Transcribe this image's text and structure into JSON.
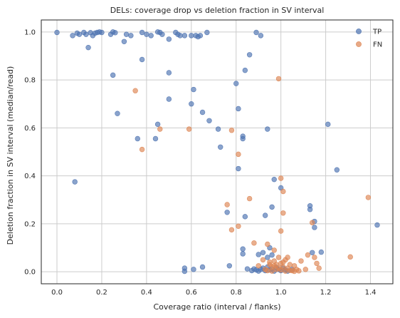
{
  "chart_data": {
    "type": "scatter",
    "title": "DELs: coverage drop vs deletion fraction in SV interval",
    "xlabel": "Coverage ratio (interval / flanks)",
    "ylabel": "Deletion fraction in SV interval (median/read)",
    "xlim": [
      -0.07,
      1.5
    ],
    "ylim": [
      -0.05,
      1.05
    ],
    "xticks": [
      "0.0",
      "0.2",
      "0.4",
      "0.6",
      "0.8",
      "1.0",
      "1.2",
      "1.4"
    ],
    "yticks": [
      "0.0",
      "0.2",
      "0.4",
      "0.6",
      "0.8",
      "1.0"
    ],
    "grid": true,
    "legend_position": "top-right",
    "series": [
      {
        "name": "TP",
        "color": "#4c72b0",
        "points": [
          [
            0.0,
            0.998
          ],
          [
            0.07,
            0.985
          ],
          [
            0.09,
            0.995
          ],
          [
            0.1,
            0.99
          ],
          [
            0.12,
            0.998
          ],
          [
            0.13,
            0.99
          ],
          [
            0.15,
            0.997
          ],
          [
            0.16,
            0.985
          ],
          [
            0.17,
            0.995
          ],
          [
            0.18,
            0.998
          ],
          [
            0.19,
            1.0
          ],
          [
            0.2,
            0.998
          ],
          [
            0.24,
            0.99
          ],
          [
            0.25,
            1.0
          ],
          [
            0.26,
            0.997
          ],
          [
            0.3,
            0.96
          ],
          [
            0.31,
            0.99
          ],
          [
            0.33,
            0.985
          ],
          [
            0.38,
            0.998
          ],
          [
            0.4,
            0.99
          ],
          [
            0.42,
            0.985
          ],
          [
            0.45,
            1.0
          ],
          [
            0.46,
            0.998
          ],
          [
            0.47,
            0.99
          ],
          [
            0.5,
            0.97
          ],
          [
            0.53,
            0.998
          ],
          [
            0.54,
            0.99
          ],
          [
            0.55,
            0.985
          ],
          [
            0.57,
            0.985
          ],
          [
            0.6,
            0.985
          ],
          [
            0.62,
            0.985
          ],
          [
            0.63,
            0.98
          ],
          [
            0.64,
            0.985
          ],
          [
            0.67,
            0.998
          ],
          [
            0.89,
            0.998
          ],
          [
            0.91,
            0.985
          ],
          [
            0.14,
            0.935
          ],
          [
            0.25,
            0.82
          ],
          [
            0.38,
            0.885
          ],
          [
            0.5,
            0.83
          ],
          [
            0.61,
            0.76
          ],
          [
            0.6,
            0.7
          ],
          [
            0.65,
            0.665
          ],
          [
            0.5,
            0.72
          ],
          [
            0.68,
            0.63
          ],
          [
            0.72,
            0.595
          ],
          [
            0.45,
            0.615
          ],
          [
            0.36,
            0.555
          ],
          [
            0.44,
            0.555
          ],
          [
            0.27,
            0.66
          ],
          [
            0.08,
            0.375
          ],
          [
            0.73,
            0.52
          ],
          [
            0.8,
            0.785
          ],
          [
            0.84,
            0.84
          ],
          [
            0.86,
            0.905
          ],
          [
            0.81,
            0.68
          ],
          [
            0.83,
            0.565
          ],
          [
            0.83,
            0.555
          ],
          [
            0.94,
            0.595
          ],
          [
            0.81,
            0.43
          ],
          [
            1.21,
            0.615
          ],
          [
            1.25,
            0.425
          ],
          [
            0.76,
            0.248
          ],
          [
            0.84,
            0.23
          ],
          [
            0.93,
            0.235
          ],
          [
            0.96,
            0.27
          ],
          [
            0.97,
            0.385
          ],
          [
            1.0,
            0.35
          ],
          [
            1.13,
            0.26
          ],
          [
            1.13,
            0.275
          ],
          [
            1.15,
            0.21
          ],
          [
            1.15,
            0.185
          ],
          [
            1.43,
            0.195
          ],
          [
            0.83,
            0.095
          ],
          [
            0.83,
            0.075
          ],
          [
            0.9,
            0.072
          ],
          [
            0.92,
            0.08
          ],
          [
            0.94,
            0.06
          ],
          [
            0.95,
            0.1
          ],
          [
            0.96,
            0.07
          ],
          [
            1.14,
            0.08
          ],
          [
            1.18,
            0.082
          ],
          [
            0.57,
            0.015
          ],
          [
            0.57,
            0.002
          ],
          [
            0.61,
            0.01
          ],
          [
            0.65,
            0.02
          ],
          [
            0.77,
            0.025
          ],
          [
            0.85,
            0.012
          ],
          [
            0.87,
            0.005
          ],
          [
            0.88,
            0.012
          ],
          [
            0.89,
            0.008
          ],
          [
            0.9,
            0.003
          ],
          [
            0.91,
            0.01
          ],
          [
            0.92,
            0.015
          ],
          [
            0.93,
            0.005
          ],
          [
            0.94,
            0.02
          ],
          [
            0.95,
            0.008
          ],
          [
            0.96,
            0.012
          ],
          [
            0.97,
            0.003
          ],
          [
            0.98,
            0.018
          ],
          [
            0.99,
            0.01
          ],
          [
            1.0,
            0.005
          ],
          [
            1.01,
            0.015
          ],
          [
            1.02,
            0.008
          ],
          [
            1.03,
            0.003
          ],
          [
            1.05,
            0.01
          ]
        ]
      },
      {
        "name": "FN",
        "color": "#dd8452",
        "points": [
          [
            0.35,
            0.755
          ],
          [
            0.38,
            0.51
          ],
          [
            0.46,
            0.595
          ],
          [
            0.59,
            0.595
          ],
          [
            0.78,
            0.59
          ],
          [
            0.81,
            0.49
          ],
          [
            0.81,
            0.19
          ],
          [
            0.99,
            0.805
          ],
          [
            1.0,
            0.39
          ],
          [
            1.01,
            0.335
          ],
          [
            0.76,
            0.28
          ],
          [
            0.78,
            0.175
          ],
          [
            0.86,
            0.305
          ],
          [
            1.01,
            0.245
          ],
          [
            1.0,
            0.17
          ],
          [
            1.14,
            0.205
          ],
          [
            1.39,
            0.31
          ],
          [
            1.31,
            0.062
          ],
          [
            0.88,
            0.12
          ],
          [
            0.94,
            0.115
          ],
          [
            0.97,
            0.09
          ],
          [
            0.92,
            0.05
          ],
          [
            0.95,
            0.03
          ],
          [
            0.96,
            0.02
          ],
          [
            0.97,
            0.045
          ],
          [
            0.98,
            0.01
          ],
          [
            0.99,
            0.06
          ],
          [
            1.0,
            0.035
          ],
          [
            1.01,
            0.02
          ],
          [
            1.02,
            0.05
          ],
          [
            1.03,
            0.015
          ],
          [
            1.04,
            0.03
          ],
          [
            1.05,
            0.005
          ],
          [
            1.06,
            0.025
          ],
          [
            1.07,
            0.01
          ],
          [
            1.09,
            0.045
          ],
          [
            1.11,
            0.01
          ],
          [
            1.12,
            0.07
          ],
          [
            1.16,
            0.035
          ],
          [
            1.17,
            0.015
          ],
          [
            0.93,
            0.01
          ],
          [
            0.94,
            0.005
          ],
          [
            0.96,
            0.003
          ],
          [
            0.98,
            0.03
          ],
          [
            1.0,
            0.008
          ],
          [
            1.02,
            0.003
          ],
          [
            1.04,
            0.006
          ],
          [
            1.06,
            0.002
          ],
          [
            1.08,
            0.004
          ],
          [
            0.95,
            0.04
          ],
          [
            0.97,
            0.025
          ],
          [
            0.99,
            0.015
          ],
          [
            1.01,
            0.04
          ],
          [
            1.03,
            0.06
          ],
          [
            0.9,
            0.025
          ],
          [
            1.15,
            0.06
          ]
        ]
      }
    ]
  }
}
